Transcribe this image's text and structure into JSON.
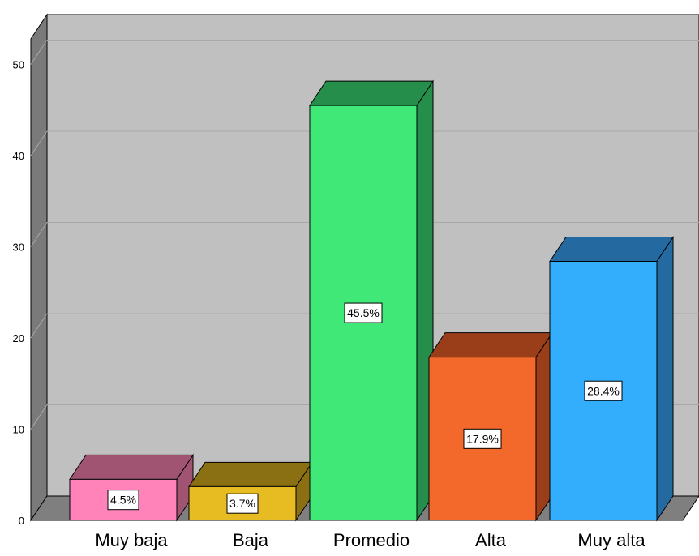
{
  "chart_data": {
    "type": "bar",
    "categories": [
      "Muy baja",
      "Baja",
      "Promedio",
      "Alta",
      "Muy alta"
    ],
    "values": [
      4.5,
      3.7,
      45.5,
      17.9,
      28.4
    ],
    "data_labels": [
      "4.5%",
      "3.7%",
      "45.5%",
      "17.9%",
      "28.4%"
    ],
    "y_ticks": [
      "0",
      "10",
      "20",
      "30",
      "40",
      "50"
    ],
    "ylim": [
      0,
      55
    ],
    "grid": true,
    "style": "3d",
    "colors": {
      "front": [
        "#ff82b9",
        "#e6bc22",
        "#40e878",
        "#f2692b",
        "#32aefc"
      ],
      "top": [
        "#a05472",
        "#8a7012",
        "#258e4a",
        "#9a3e1a",
        "#246aa0"
      ],
      "side": [
        "#a05472",
        "#8a7012",
        "#258e4a",
        "#9a3e1a",
        "#246aa0"
      ],
      "plot_background": "#c0c0c0",
      "wall": "#7a7a7a",
      "floor": "#7f7f7f",
      "gridline": "#a9a9a9"
    }
  }
}
